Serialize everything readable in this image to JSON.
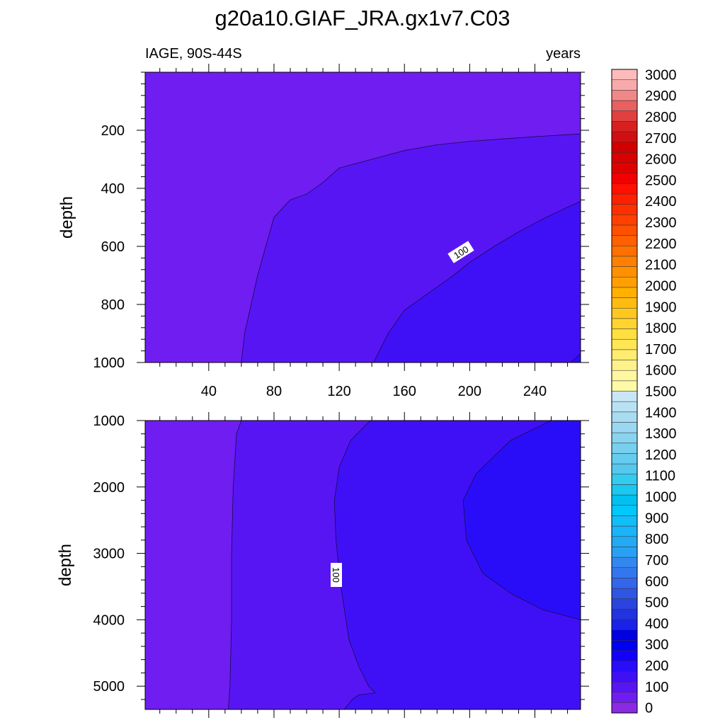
{
  "chart_data": {
    "type": "filled-contour",
    "title": "g20a10.GIAF_JRA.gx1v7.C03",
    "subtitle_left": "IAGE, 90S-44S",
    "subtitle_right": "years",
    "xlabel": "",
    "xlim": [
      1,
      268
    ],
    "x_ticks": [
      40,
      80,
      120,
      160,
      200,
      240
    ],
    "x_tick_labels": [
      "40",
      "80",
      "120",
      "160",
      "200",
      "240"
    ],
    "panels": [
      {
        "name": "upper",
        "ylabel": "depth",
        "ylim": [
          1000,
          0
        ],
        "y_ticks": [
          200,
          400,
          600,
          800,
          1000
        ],
        "y_tick_labels": [
          "200",
          "400",
          "600",
          "800",
          "1000"
        ],
        "contour_label": "100",
        "regions": [
          {
            "level": 0,
            "color": "#6f1df0"
          },
          {
            "level": 50,
            "color": "#5815f4"
          },
          {
            "level": 100,
            "color": "#3f10f6"
          },
          {
            "level": 150,
            "color": "#2a0df8"
          }
        ],
        "boundaries": [
          {
            "level": 50,
            "points": [
              [
                60,
                1000
              ],
              [
                62,
                900
              ],
              [
                66,
                800
              ],
              [
                70,
                700
              ],
              [
                75,
                600
              ],
              [
                80,
                500
              ],
              [
                90,
                440
              ],
              [
                100,
                420
              ],
              [
                110,
                380
              ],
              [
                120,
                330
              ],
              [
                140,
                300
              ],
              [
                160,
                270
              ],
              [
                180,
                250
              ],
              [
                200,
                238
              ],
              [
                220,
                230
              ],
              [
                240,
                222
              ],
              [
                260,
                215
              ],
              [
                268,
                213
              ]
            ]
          },
          {
            "level": 100,
            "points": [
              [
                141,
                1000
              ],
              [
                150,
                900
              ],
              [
                160,
                820
              ],
              [
                175,
                760
              ],
              [
                190,
                700
              ],
              [
                200,
                655
              ],
              [
                215,
                600
              ],
              [
                230,
                550
              ],
              [
                245,
                505
              ],
              [
                258,
                470
              ],
              [
                268,
                445
              ]
            ]
          },
          {
            "level": 150,
            "points": [
              [
                262,
                1000
              ],
              [
                268,
                970
              ]
            ]
          }
        ]
      },
      {
        "name": "lower",
        "ylabel": "depth",
        "ylim": [
          5350,
          1000
        ],
        "y_ticks": [
          1000,
          2000,
          3000,
          4000,
          5000
        ],
        "y_tick_labels": [
          "1000",
          "2000",
          "3000",
          "4000",
          "5000"
        ],
        "contour_label": "100",
        "regions": [
          {
            "level": 0,
            "color": "#6f1df0"
          },
          {
            "level": 50,
            "color": "#5815f4"
          },
          {
            "level": 100,
            "color": "#3f10f6"
          },
          {
            "level": 150,
            "color": "#2a0df8"
          }
        ],
        "boundaries": [
          {
            "level": 50,
            "points": [
              [
                60,
                1000
              ],
              [
                57,
                1200
              ],
              [
                55,
                2000
              ],
              [
                54,
                3000
              ],
              [
                54,
                4000
              ],
              [
                53,
                5000
              ],
              [
                52,
                5350
              ]
            ]
          },
          {
            "level": 100,
            "points": [
              [
                139,
                1000
              ],
              [
                127,
                1300
              ],
              [
                120,
                1700
              ],
              [
                117,
                2200
              ],
              [
                118,
                2800
              ],
              [
                121,
                3500
              ],
              [
                126,
                4300
              ],
              [
                132,
                4700
              ],
              [
                138,
                5000
              ],
              [
                142,
                5100
              ],
              [
                132,
                5130
              ],
              [
                128,
                5200
              ],
              [
                123,
                5350
              ]
            ]
          },
          {
            "level": 150,
            "points": [
              [
                268,
                1000
              ],
              [
                250,
                1000
              ],
              [
                225,
                1300
              ],
              [
                204,
                1800
              ],
              [
                196,
                2200
              ],
              [
                198,
                2800
              ],
              [
                208,
                3300
              ],
              [
                225,
                3600
              ],
              [
                245,
                3850
              ],
              [
                268,
                4000
              ]
            ]
          }
        ]
      }
    ],
    "colorbar": {
      "labels": [
        "0",
        "100",
        "200",
        "300",
        "400",
        "500",
        "600",
        "700",
        "800",
        "900",
        "1000",
        "1100",
        "1200",
        "1300",
        "1400",
        "1500",
        "1600",
        "1700",
        "1800",
        "1900",
        "2000",
        "2100",
        "2200",
        "2300",
        "2400",
        "2500",
        "2600",
        "2700",
        "2800",
        "2900",
        "3000"
      ],
      "colors": [
        "#8a2be2",
        "#6f1df0",
        "#5815f4",
        "#3f10f6",
        "#2a0df8",
        "#1400fa",
        "#0000f0",
        "#0000e0",
        "#1a22e8",
        "#2233e0",
        "#2b44e0",
        "#2f55e5",
        "#3366ea",
        "#3377ee",
        "#3388f0",
        "#2aa0f5",
        "#22aaf5",
        "#1ab4f8",
        "#10bef8",
        "#00c8fa",
        "#00c0f0",
        "#1ac8f0",
        "#33ccf0",
        "#55c8ee",
        "#66ccee",
        "#77d0ee",
        "#88d4f0",
        "#99d8f0",
        "#a8dcf0",
        "#b8e2f4",
        "#c8e6f5",
        "#fffaa8",
        "#fff7a0",
        "#fff28a",
        "#ffec70",
        "#ffe655",
        "#ffe040",
        "#ffd430",
        "#ffc820",
        "#ffbc10",
        "#ffb000",
        "#ffa000",
        "#ff9000",
        "#ff8000",
        "#ff7000",
        "#ff6000",
        "#ff5000",
        "#ff4000",
        "#ff3000",
        "#ff2000",
        "#ff1000",
        "#f00000",
        "#e00000",
        "#d80000",
        "#d00000",
        "#d01010",
        "#d82020",
        "#e04040",
        "#e86060",
        "#f08888",
        "#f8aaaa",
        "#ffbbbb"
      ]
    }
  }
}
